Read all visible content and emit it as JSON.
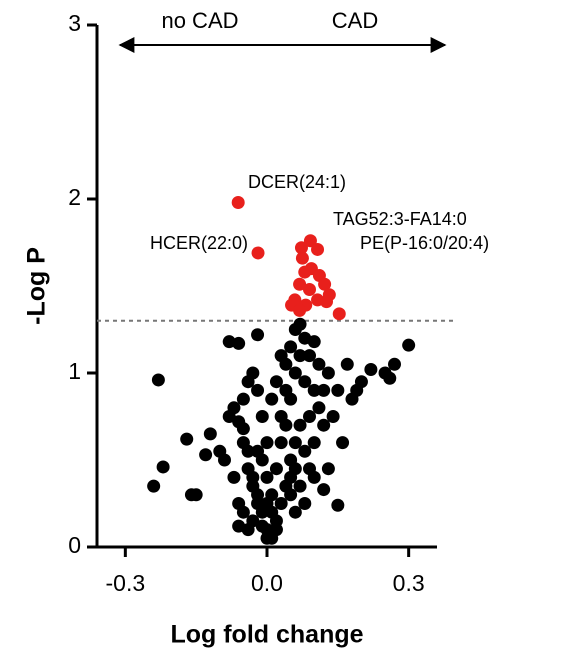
{
  "chart_data": {
    "type": "scatter",
    "x_label": "Log fold change",
    "y_label": "-Log P",
    "xlim": [
      -0.36,
      0.36
    ],
    "ylim": [
      0,
      3
    ],
    "xticks": [
      -0.3,
      {
        "value": 0,
        "label": "0.0"
      },
      0.3
    ],
    "yticks": [
      0,
      1,
      2,
      3
    ],
    "threshold": 1.3,
    "direction_labels": [
      "no CAD",
      "CAD"
    ],
    "annotations": [
      "DCER(24:1)",
      "HCER(22:0)",
      "TAG52:3-FA14:0",
      "PE(P-16:0/20:4)"
    ],
    "series": [
      {
        "color": "#000000",
        "x": [
          -0.23,
          -0.24,
          -0.22,
          -0.15,
          -0.16,
          -0.17,
          -0.13,
          -0.12,
          -0.1,
          -0.08,
          -0.06,
          -0.02,
          0.3,
          0.27,
          0.25,
          0.26,
          0.22,
          0.2,
          0.19,
          0.17,
          0.15,
          0.15,
          0.12,
          0.09,
          0.13,
          0.16,
          0.18,
          0.14,
          0.12,
          -0.08,
          -0.07,
          -0.06,
          -0.05,
          -0.05,
          -0.04,
          -0.04,
          -0.03,
          -0.03,
          -0.02,
          -0.02,
          -0.01,
          -0.01,
          0,
          0,
          -0.03,
          -0.04,
          -0.06,
          -0.05,
          -0.07,
          -0.09,
          -0.05,
          -0.04,
          -0.03,
          -0.02,
          -0.01,
          0,
          0,
          0.01,
          0.01,
          0.02,
          0.02,
          0.03,
          0.03,
          0.04,
          0.04,
          0.05,
          0.05,
          0.06,
          0.06,
          0.07,
          0.07,
          0.08,
          0.08,
          0.09,
          0.1,
          0.1,
          0.11,
          0.11,
          0.09,
          0.07,
          0.06,
          0.05,
          0.04,
          0.03,
          0.02,
          0.01,
          0.05,
          0.06,
          0.08,
          0.1,
          0.03,
          0.02,
          0.01,
          0.04,
          0.05,
          0.07,
          0.08,
          0.1,
          0.12,
          0.13,
          -0.02,
          -0.01,
          0,
          0.06,
          -0.06
        ],
        "values": [
          0.96,
          0.35,
          0.46,
          0.3,
          0.3,
          0.62,
          0.53,
          0.65,
          0.55,
          1.18,
          1.17,
          1.22,
          1.16,
          1.05,
          1.0,
          0.97,
          1.02,
          0.95,
          0.9,
          1.05,
          0.9,
          0.24,
          0.33,
          0.45,
          0.45,
          0.6,
          0.85,
          0.75,
          0.7,
          0.75,
          0.8,
          0.72,
          0.68,
          0.6,
          0.55,
          0.45,
          0.4,
          0.35,
          0.3,
          0.25,
          0.2,
          0.12,
          0.05,
          0.1,
          0.15,
          0.1,
          0.12,
          0.2,
          0.4,
          0.5,
          0.85,
          0.95,
          1.0,
          0.9,
          0.75,
          0.6,
          0.4,
          0.3,
          0.2,
          0.1,
          0.45,
          0.6,
          0.75,
          0.9,
          1.05,
          1.15,
          0.85,
          1.25,
          1.0,
          1.28,
          1.1,
          1.2,
          0.95,
          1.1,
          1.18,
          0.9,
          1.05,
          0.8,
          0.75,
          0.7,
          0.6,
          0.5,
          0.35,
          0.25,
          0.15,
          0.05,
          0.3,
          0.45,
          0.55,
          0.6,
          1.1,
          0.95,
          0.85,
          0.7,
          0.4,
          0.35,
          0.25,
          0.4,
          0.9,
          1.0,
          0.55,
          0.5,
          0.25,
          0.2,
          0.25
        ]
      },
      {
        "color": "#e8201c",
        "x": [
          -0.061,
          -0.019,
          0.092,
          0.073,
          0.107,
          0.08,
          0.094,
          0.111,
          0.069,
          0.09,
          0.122,
          0.132,
          0.059,
          0.082,
          0.107,
          0.052,
          0.153,
          0.069,
          0.126,
          0.075
        ],
        "values": [
          1.98,
          1.69,
          1.76,
          1.72,
          1.71,
          1.58,
          1.6,
          1.56,
          1.51,
          1.48,
          1.51,
          1.45,
          1.42,
          1.39,
          1.42,
          1.39,
          1.34,
          1.36,
          1.41,
          1.66
        ]
      }
    ]
  }
}
